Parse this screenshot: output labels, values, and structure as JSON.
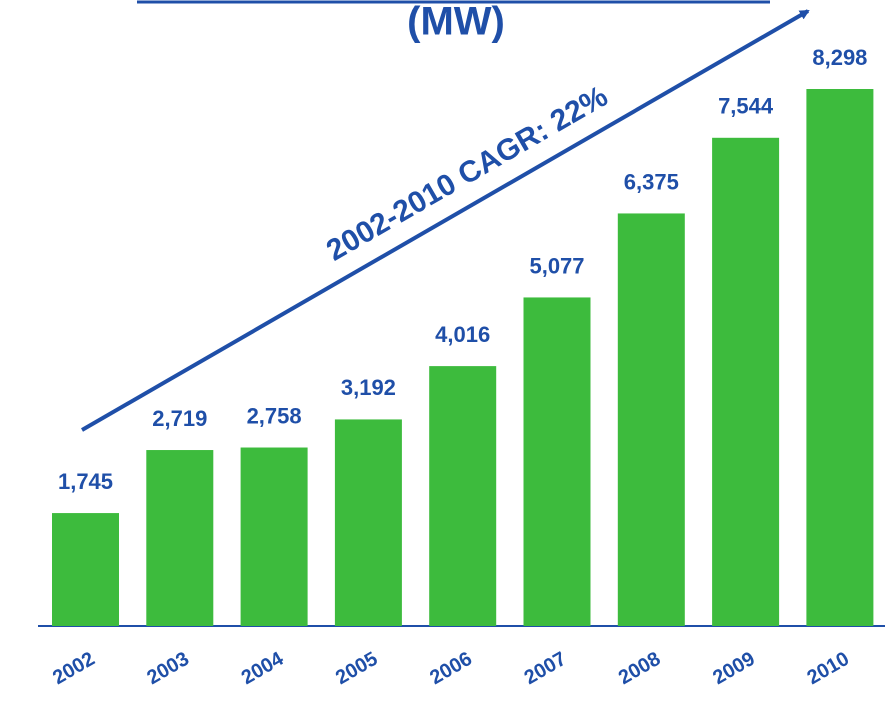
{
  "chart_data": {
    "type": "bar",
    "title": "(MW)",
    "annotation": "2002-2010 CAGR: 22%",
    "categories": [
      "2002",
      "2003",
      "2004",
      "2005",
      "2006",
      "2007",
      "2008",
      "2009",
      "2010"
    ],
    "values": [
      1745,
      2719,
      2758,
      3192,
      4016,
      5077,
      6375,
      7544,
      8298
    ],
    "value_labels": [
      "1,745",
      "2,719",
      "2,758",
      "3,192",
      "4,016",
      "5,077",
      "6,375",
      "7,544",
      "8,298"
    ],
    "color": "#3dbb3d"
  }
}
